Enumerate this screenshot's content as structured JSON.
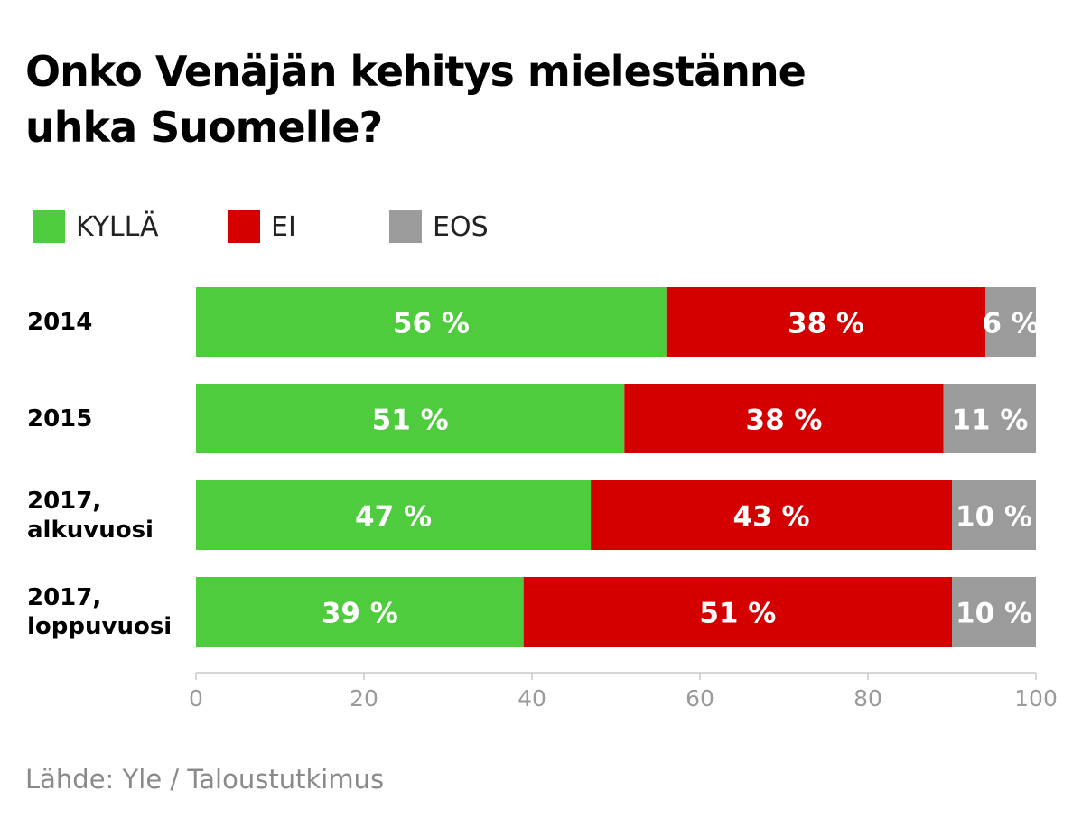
{
  "chart_data": {
    "type": "bar",
    "orientation": "horizontal",
    "stacked": true,
    "title": "Onko Venäjän kehitys mielestänne uhka Suomelle?",
    "categories": [
      "2014",
      "2015",
      "2017,\nalkuvuosi",
      "2017,\nloppuvuosi"
    ],
    "series": [
      {
        "name": "KYLLÄ",
        "color": "#4fcc3d",
        "values": [
          56,
          51,
          47,
          39
        ]
      },
      {
        "name": "EI",
        "color": "#d40000",
        "values": [
          38,
          38,
          43,
          51
        ]
      },
      {
        "name": "EOS",
        "color": "#9b9b9b",
        "values": [
          6,
          11,
          10,
          10
        ]
      }
    ],
    "data_labels": [
      [
        "56 %",
        "38 %",
        "6 %"
      ],
      [
        "51 %",
        "38 %",
        "11 %"
      ],
      [
        "47 %",
        "43 %",
        "10 %"
      ],
      [
        "39 %",
        "51 %",
        "10 %"
      ]
    ],
    "xlim": [
      0,
      100
    ],
    "xticks": [
      "0",
      "20",
      "40",
      "60",
      "80",
      "100"
    ],
    "grid": false,
    "legend": "top-left"
  },
  "source": "Lähde: Yle / Taloustutkimus"
}
